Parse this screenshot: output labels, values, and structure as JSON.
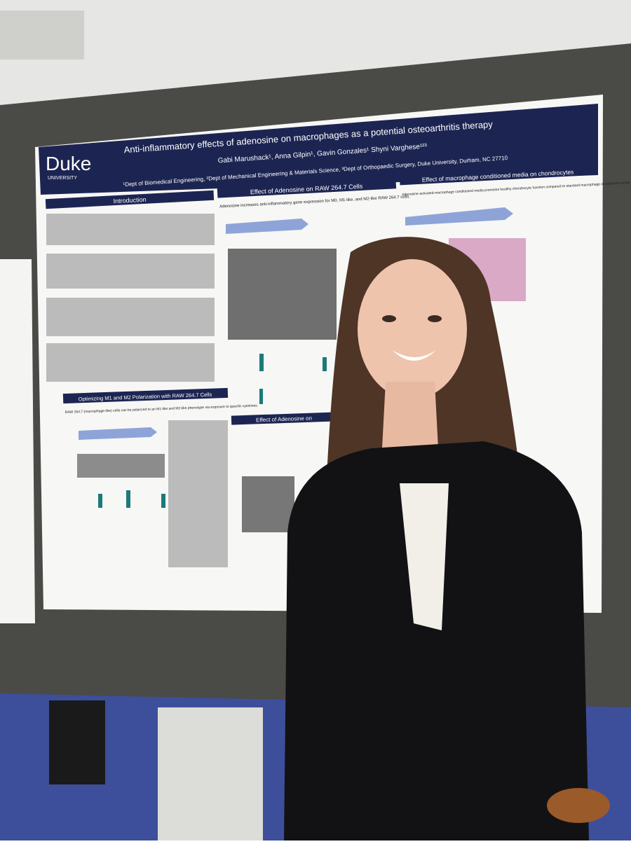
{
  "poster": {
    "logo": "Duke",
    "logo_sub": "UNIVERSITY",
    "title": "Anti-inflammatory effects of adenosine on macrophages as a potential osteoarthritis therapy",
    "authors": "Gabi Marushack¹, Anna Gilpin¹, Gavin Gonzales¹ Shyni Varghese¹²³",
    "affiliations": "¹Dept of Biomedical Engineering, ²Dept of Mechanical Engineering & Materials Science, ³Dept of Orthopaedic Surgery, Duke University, Durham, NC 27710",
    "sections": {
      "introduction": "Introduction",
      "raw_cells": "Effect of Adenosine on RAW 264.7 Cells",
      "conditioned_media": "Effect of macrophage conditioned media on chondrocytes",
      "optimizing": "Optimizing M1 and M2 Polarization with RAW 264.7 Cells",
      "bmdm": "Effect of Adenosine on"
    },
    "subheadings": {
      "raw_cells": "Adenosine increases anti-inflammatory gene expression for M0, M1-like, and M2-like RAW 264.7 cells.",
      "conditioned_media": "Adenosine-activated-macrophage conditioned media promotes healthy chondrocyte function compared to standard macrophage-conditioned-media",
      "optimizing": "RAW 264.7 (macrophage-like) cells can be polarized to an M1-like and M2-like phenotype via exposure to specific cytokines."
    }
  }
}
